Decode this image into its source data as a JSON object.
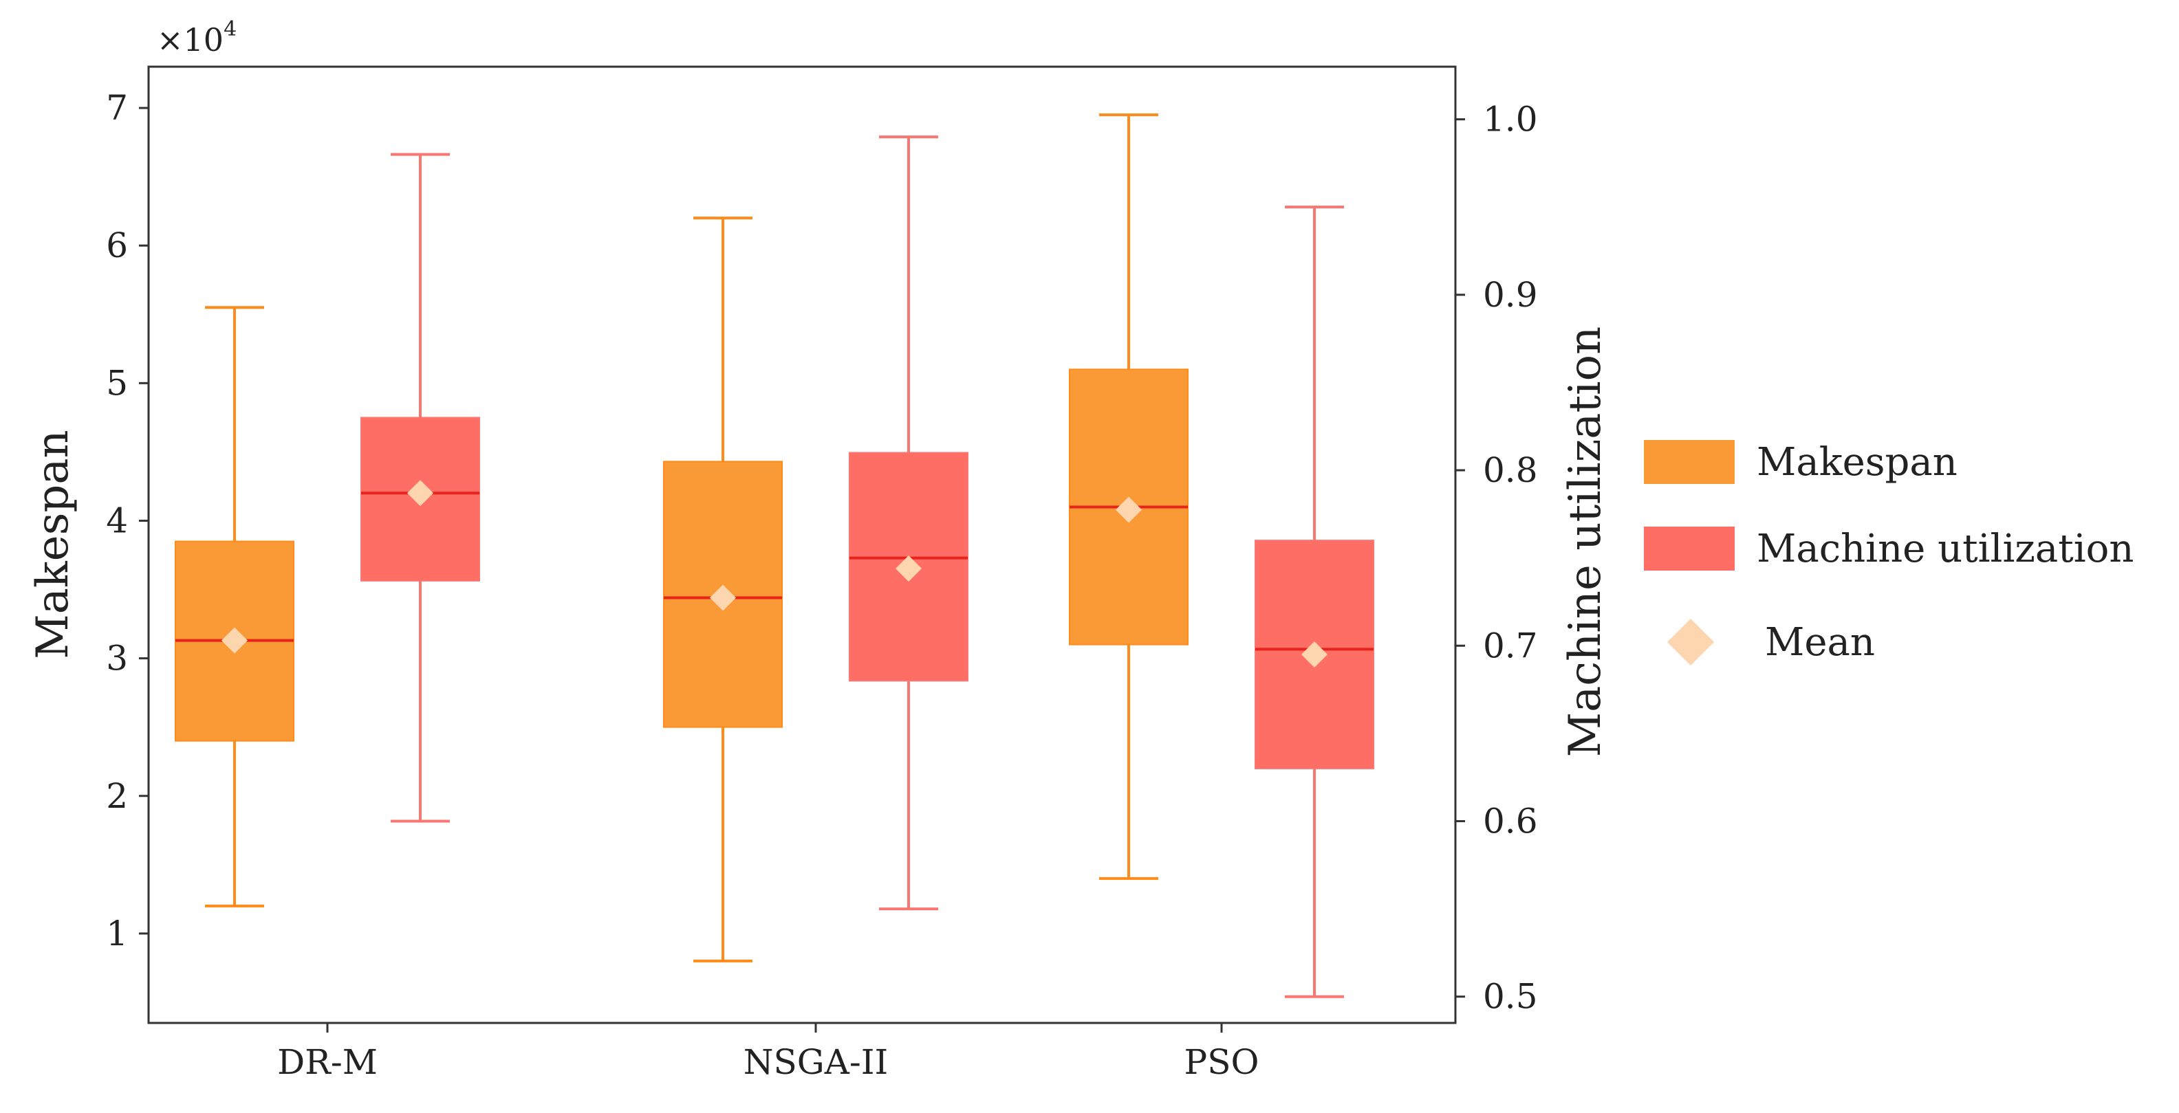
{
  "chart_data": {
    "type": "box",
    "categories": [
      "DR-M",
      "NSGA-II",
      "PSO"
    ],
    "left_axis": {
      "label": "Makespan",
      "multiplier_base": "×10",
      "multiplier_exp": "4",
      "ylim": [
        0.35,
        7.3
      ],
      "ticks": [
        1,
        2,
        3,
        4,
        5,
        6,
        7
      ],
      "tick_labels": [
        "1",
        "2",
        "3",
        "4",
        "5",
        "6",
        "7"
      ]
    },
    "right_axis": {
      "label": "Machine utilization",
      "ylim": [
        0.485,
        1.03
      ],
      "ticks": [
        0.5,
        0.6,
        0.7,
        0.8,
        0.9,
        1.0
      ],
      "tick_labels": [
        "0.5",
        "0.6",
        "0.7",
        "0.8",
        "0.9",
        "1.0"
      ]
    },
    "series": [
      {
        "name": "Makespan",
        "axis": "left",
        "color": "#f99a36",
        "whisker_color": "#ff8c1a",
        "median_color": "#e8231c",
        "boxes": [
          {
            "min": 1.2,
            "q1": 2.4,
            "median": 3.13,
            "q3": 3.85,
            "max": 5.55,
            "mean": 3.13
          },
          {
            "min": 0.8,
            "q1": 2.5,
            "median": 3.44,
            "q3": 4.43,
            "max": 6.2,
            "mean": 3.44
          },
          {
            "min": 1.4,
            "q1": 3.1,
            "median": 4.1,
            "q3": 5.1,
            "max": 6.95,
            "mean": 4.08
          }
        ]
      },
      {
        "name": "Machine utilization",
        "axis": "right",
        "color": "#ff6e64",
        "whisker_color": "#fa7670",
        "median_color": "#e8231c",
        "boxes": [
          {
            "min": 0.6,
            "q1": 0.737,
            "median": 0.787,
            "q3": 0.83,
            "max": 0.98,
            "mean": 0.787
          },
          {
            "min": 0.55,
            "q1": 0.68,
            "median": 0.75,
            "q3": 0.81,
            "max": 0.99,
            "mean": 0.744
          },
          {
            "min": 0.5,
            "q1": 0.63,
            "median": 0.698,
            "q3": 0.76,
            "max": 0.95,
            "mean": 0.695
          }
        ]
      }
    ],
    "legend": {
      "position": "right",
      "entries": [
        {
          "label": "Makespan",
          "color": "#f99a36",
          "shape": "square"
        },
        {
          "label": "Machine utilization",
          "color": "#ff6e64",
          "shape": "square"
        },
        {
          "label": "Mean",
          "color": "#fdd6b0",
          "shape": "diamond"
        }
      ]
    },
    "mean_marker_color": "#fdd6b0"
  }
}
